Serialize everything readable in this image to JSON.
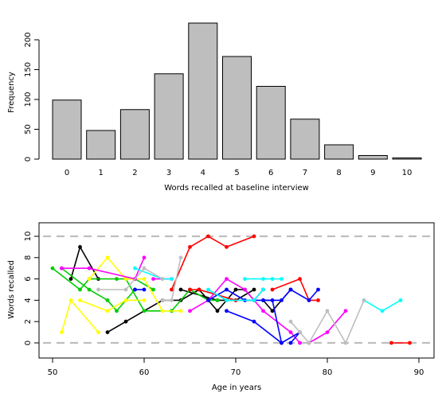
{
  "chart_data": [
    {
      "type": "bar",
      "xlabel": "Words recalled at baseline interview",
      "ylabel": "Frequency",
      "categories": [
        "0",
        "1",
        "2",
        "3",
        "4",
        "5",
        "6",
        "7",
        "8",
        "9",
        "10"
      ],
      "values": [
        99,
        48,
        83,
        143,
        228,
        172,
        122,
        67,
        24,
        6,
        2
      ],
      "ylim": [
        0,
        230
      ],
      "yticks": [
        0,
        50,
        100,
        150,
        200
      ],
      "bar_fill": "#bebebe",
      "bar_stroke": "#000000"
    },
    {
      "type": "line",
      "xlabel": "Age in years",
      "ylabel": "Words recalled",
      "xlim": [
        48.5,
        91.5
      ],
      "ylim": [
        -1.5,
        11.2
      ],
      "xticks": [
        50,
        60,
        70,
        80,
        90
      ],
      "yticks": [
        0,
        2,
        4,
        6,
        8,
        10
      ],
      "reference_lines": [
        0,
        10
      ],
      "reference_line_color": "#bebebe",
      "series": [
        {
          "color": "#000000",
          "points": [
            [
              52,
              6
            ],
            [
              53,
              9
            ],
            [
              55,
              6
            ]
          ]
        },
        {
          "color": "#000000",
          "points": [
            [
              56,
              1
            ],
            [
              58,
              2
            ],
            [
              62,
              4
            ],
            [
              64,
              4
            ],
            [
              66,
              5
            ],
            [
              68,
              3
            ],
            [
              70,
              5
            ],
            [
              71,
              5
            ],
            [
              72,
              4
            ]
          ]
        },
        {
          "color": "#000000",
          "points": [
            [
              64,
              5
            ],
            [
              68,
              4
            ],
            [
              70,
              4
            ],
            [
              72,
              5
            ]
          ]
        },
        {
          "color": "#000000",
          "points": [
            [
              73,
              4
            ],
            [
              74,
              3
            ],
            [
              76,
              5
            ]
          ]
        },
        {
          "color": "#00cd00",
          "points": [
            [
              50,
              7
            ],
            [
              53,
              5
            ],
            [
              54,
              6
            ],
            [
              57,
              6
            ],
            [
              59,
              6
            ],
            [
              61,
              5
            ]
          ]
        },
        {
          "color": "#00cd00",
          "points": [
            [
              51,
              7
            ],
            [
              54,
              5
            ],
            [
              56,
              4
            ],
            [
              57,
              3
            ],
            [
              59,
              5
            ]
          ]
        },
        {
          "color": "#00cd00",
          "points": [
            [
              58,
              6
            ],
            [
              60,
              3
            ],
            [
              63,
              3
            ],
            [
              65,
              5
            ],
            [
              67,
              4
            ],
            [
              68,
              4
            ]
          ]
        },
        {
          "color": "#ffff00",
          "points": [
            [
              51,
              1
            ],
            [
              52,
              4
            ],
            [
              55,
              1
            ]
          ]
        },
        {
          "color": "#ffff00",
          "points": [
            [
              53,
              4
            ],
            [
              56,
              3
            ],
            [
              58,
              4
            ],
            [
              60,
              4
            ]
          ]
        },
        {
          "color": "#ffff00",
          "points": [
            [
              54,
              6
            ],
            [
              56,
              8
            ],
            [
              58,
              6
            ],
            [
              60,
              6
            ],
            [
              62,
              3
            ],
            [
              64,
              3
            ]
          ]
        },
        {
          "color": "#ff00ff",
          "points": [
            [
              51,
              7
            ],
            [
              54,
              7
            ],
            [
              59,
              6
            ],
            [
              60,
              8
            ]
          ]
        },
        {
          "color": "#ff00ff",
          "points": [
            [
              61,
              6
            ],
            [
              63,
              6
            ]
          ]
        },
        {
          "color": "#ff00ff",
          "points": [
            [
              65,
              3
            ],
            [
              67,
              4
            ],
            [
              69,
              6
            ],
            [
              71,
              5
            ],
            [
              73,
              3
            ],
            [
              76,
              1
            ],
            [
              77,
              0
            ]
          ]
        },
        {
          "color": "#ff00ff",
          "points": [
            [
              78,
              0
            ],
            [
              80,
              1
            ],
            [
              82,
              3
            ]
          ]
        },
        {
          "color": "#ff0000",
          "points": [
            [
              63,
              5
            ],
            [
              65,
              9
            ],
            [
              67,
              10
            ],
            [
              69,
              9
            ],
            [
              72,
              10
            ]
          ]
        },
        {
          "color": "#ff0000",
          "points": [
            [
              65,
              5
            ],
            [
              66,
              5
            ],
            [
              70,
              4
            ],
            [
              72,
              4
            ],
            [
              73,
              5
            ]
          ]
        },
        {
          "color": "#ff0000",
          "points": [
            [
              74,
              5
            ],
            [
              77,
              6
            ],
            [
              78,
              4
            ],
            [
              79,
              4
            ]
          ]
        },
        {
          "color": "#ff0000",
          "points": [
            [
              87,
              0
            ],
            [
              89,
              0
            ]
          ]
        },
        {
          "color": "#0000ff",
          "points": [
            [
              59,
              5
            ],
            [
              60,
              5
            ]
          ]
        },
        {
          "color": "#0000ff",
          "points": [
            [
              67,
              4
            ],
            [
              69,
              5
            ],
            [
              71,
              4
            ],
            [
              74,
              4
            ],
            [
              75,
              0
            ]
          ]
        },
        {
          "color": "#0000ff",
          "points": [
            [
              69,
              3
            ],
            [
              72,
              2
            ],
            [
              75,
              0
            ],
            [
              77,
              1
            ],
            [
              76,
              0
            ]
          ]
        },
        {
          "color": "#0000ff",
          "points": [
            [
              73,
              4
            ],
            [
              75,
              4
            ],
            [
              76,
              5
            ],
            [
              78,
              4
            ],
            [
              79,
              5
            ]
          ]
        },
        {
          "color": "#00ffff",
          "points": [
            [
              59,
              7
            ],
            [
              62,
              6
            ],
            [
              63,
              6
            ]
          ]
        },
        {
          "color": "#00ffff",
          "points": [
            [
              67,
              5
            ],
            [
              69,
              4
            ],
            [
              72,
              4
            ],
            [
              73,
              5
            ]
          ]
        },
        {
          "color": "#00ffff",
          "points": [
            [
              71,
              6
            ],
            [
              73,
              6
            ],
            [
              74,
              6
            ],
            [
              75,
              6
            ]
          ]
        },
        {
          "color": "#00ffff",
          "points": [
            [
              84,
              4
            ],
            [
              86,
              3
            ],
            [
              88,
              4
            ]
          ]
        },
        {
          "color": "#bebebe",
          "points": [
            [
              55,
              5
            ],
            [
              58,
              5
            ],
            [
              60,
              7
            ],
            [
              62,
              6
            ]
          ]
        },
        {
          "color": "#bebebe",
          "points": [
            [
              62,
              4
            ],
            [
              63,
              4
            ],
            [
              64,
              8
            ]
          ]
        },
        {
          "color": "#bebebe",
          "points": [
            [
              76,
              2
            ],
            [
              77,
              1
            ],
            [
              78,
              0
            ],
            [
              80,
              3
            ],
            [
              82,
              0
            ],
            [
              84,
              4
            ]
          ]
        }
      ]
    }
  ]
}
